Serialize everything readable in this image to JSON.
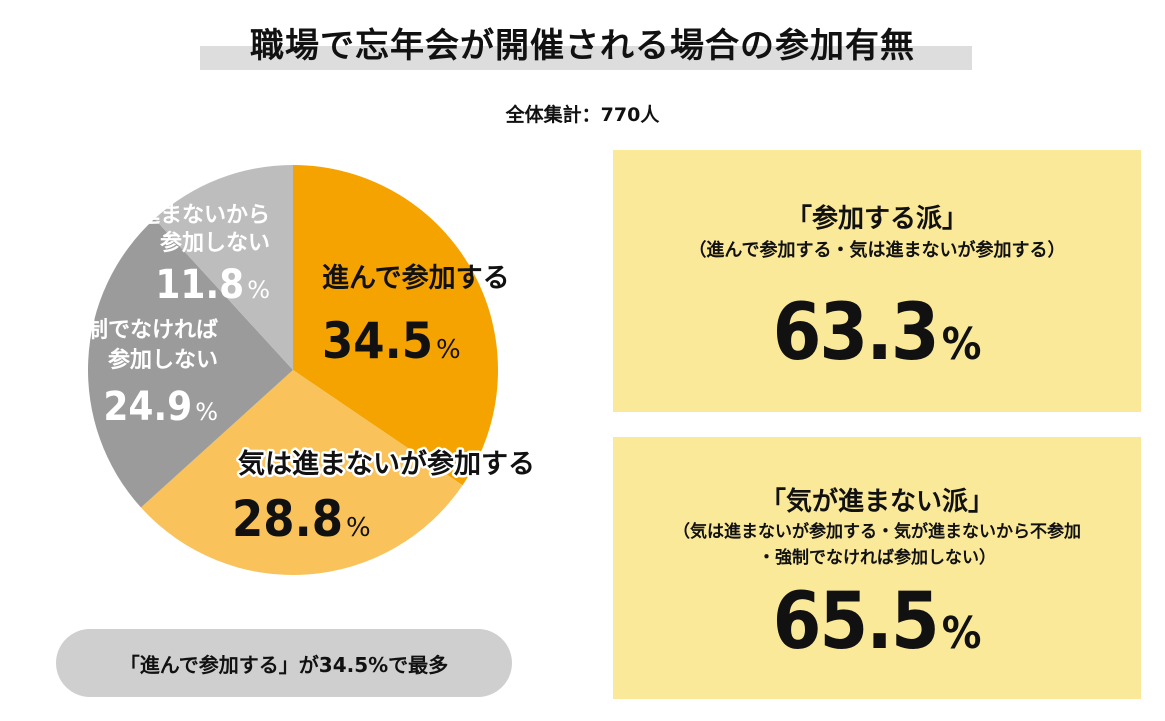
{
  "title": "職場で忘年会が開催される場合の参加有無",
  "subtitle": "全体集計：770人",
  "chart_data": {
    "type": "pie",
    "total_n": 770,
    "start_angle_deg": 0,
    "direction": "clockwise",
    "slices": [
      {
        "label_lines": [
          "進んで参加する"
        ],
        "value": 34.5,
        "value_text": "34.5",
        "unit": "%",
        "color": "#f5a300",
        "text_color": "#111111"
      },
      {
        "label_lines": [
          "気は進まないが参加する"
        ],
        "value": 28.8,
        "value_text": "28.8",
        "unit": "%",
        "color": "#f9c25a",
        "text_color": "#111111"
      },
      {
        "label_lines": [
          "強制でなければ",
          "参加しない"
        ],
        "value": 24.9,
        "value_text": "24.9",
        "unit": "%",
        "color": "#9b9b9b",
        "text_color": "#ffffff"
      },
      {
        "label_lines": [
          "気が進まないから",
          "参加しない"
        ],
        "value": 11.8,
        "value_text": "11.8",
        "unit": "%",
        "color": "#bdbdbd",
        "text_color": "#ffffff"
      }
    ]
  },
  "summary": "「進んで参加する」が34.5%で最多",
  "boxes": [
    {
      "heading": "「参加する派」",
      "note_lines": [
        "（進んで参加する・気は進まないが参加する）"
      ],
      "value": "63.3",
      "unit": "%"
    },
    {
      "heading": "「気が進まない派」",
      "note_lines": [
        "（気は進まないが参加する・気が進まないから不参加",
        "・強制でなければ参加しない）"
      ],
      "value": "65.5",
      "unit": "%"
    }
  ]
}
